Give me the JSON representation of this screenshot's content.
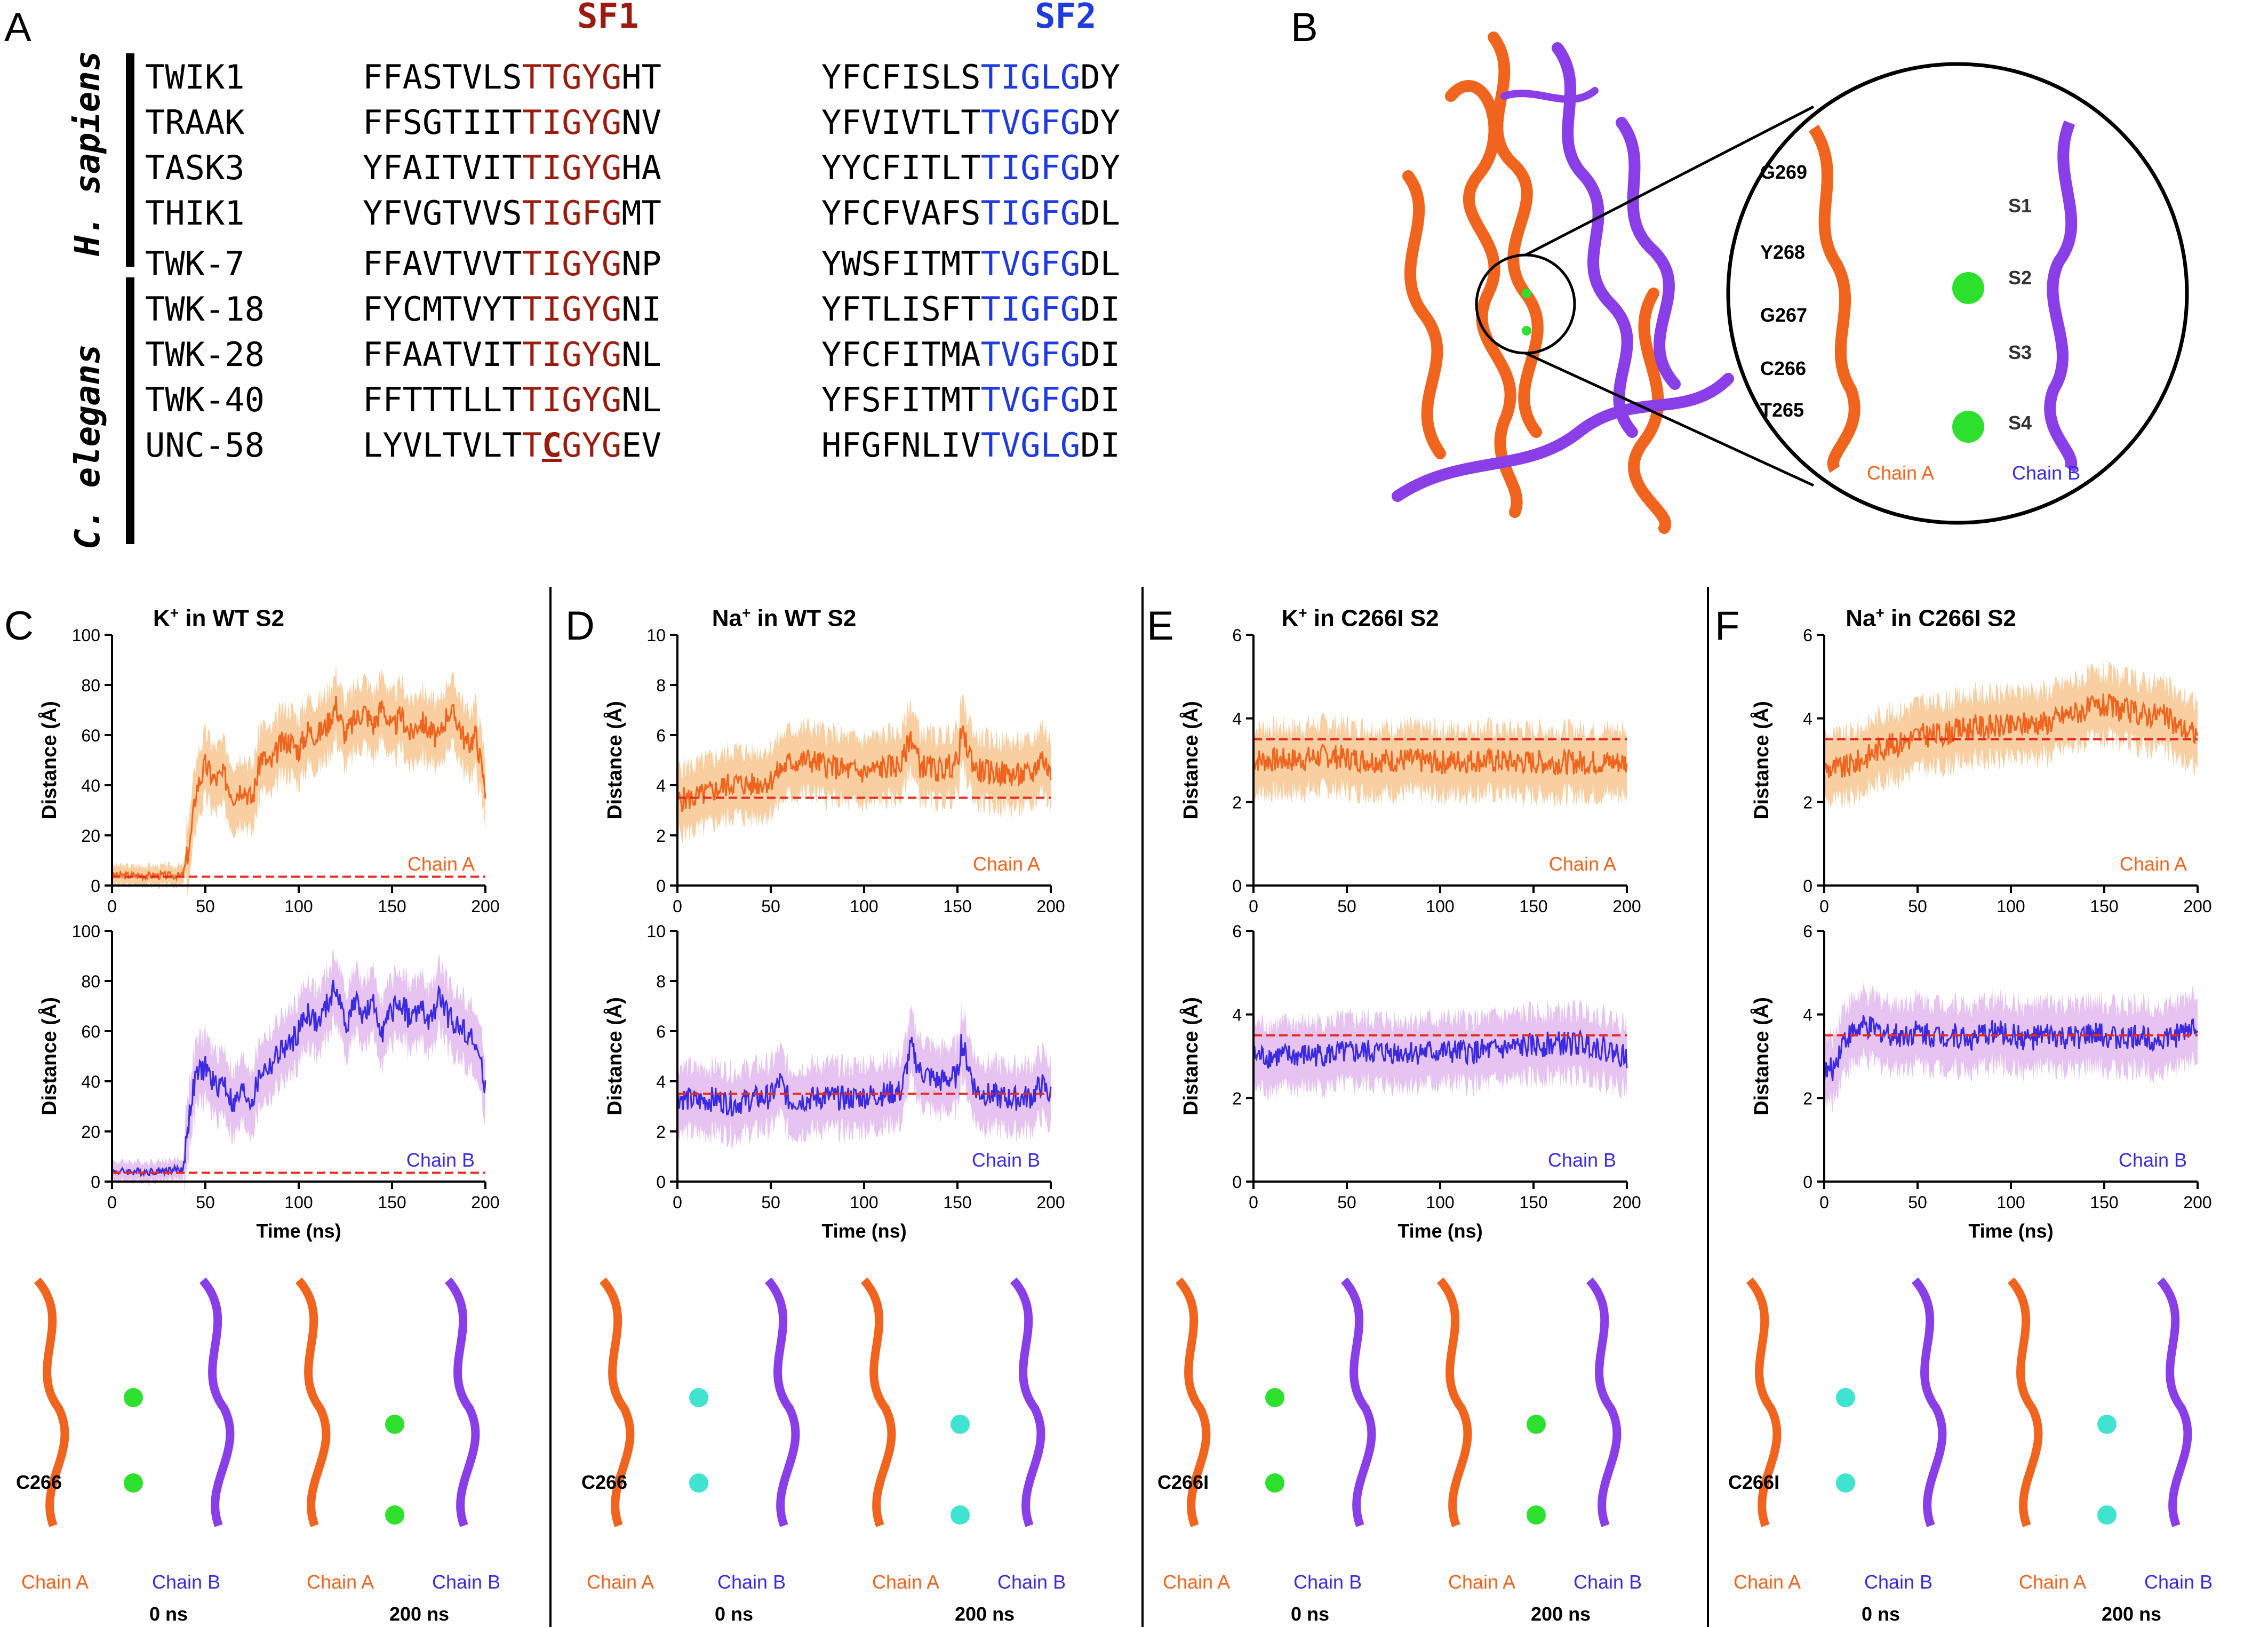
{
  "panels": {
    "A": "A",
    "B": "B",
    "C": "C",
    "D": "D",
    "E": "E",
    "F": "F"
  },
  "alignment": {
    "sf1_header": "SF1",
    "sf2_header": "SF2",
    "species_human": "H. sapiens",
    "species_worm": "C. elegans",
    "rows": [
      {
        "name": "TWIK1",
        "sf1_pre": "FFASTVLS",
        "sf1_core": "TTGYG",
        "sf1_post": "HT",
        "sf2_pre": "YFCFISLS",
        "sf2_core": "TIGLG",
        "sf2_post": "DY"
      },
      {
        "name": "TRAAK",
        "sf1_pre": "FFSGTIIT",
        "sf1_core": "TIGYG",
        "sf1_post": "NV",
        "sf2_pre": "YFVIVTLT",
        "sf2_core": "TVGFG",
        "sf2_post": "DY"
      },
      {
        "name": "TASK3",
        "sf1_pre": "YFAITVIT",
        "sf1_core": "TIGYG",
        "sf1_post": "HA",
        "sf2_pre": "YYCFITLT",
        "sf2_core": "TIGFG",
        "sf2_post": "DY"
      },
      {
        "name": "THIK1",
        "sf1_pre": "YFVGTVVS",
        "sf1_core": "TIGFG",
        "sf1_post": "MT",
        "sf2_pre": "YFCFVAFS",
        "sf2_core": "TIGFG",
        "sf2_post": "DL"
      },
      {
        "name": "TWK-7",
        "sf1_pre": "FFAVTVVT",
        "sf1_core": "TIGYG",
        "sf1_post": "NP",
        "sf2_pre": "YWSFITMT",
        "sf2_core": "TVGFG",
        "sf2_post": "DL"
      },
      {
        "name": "TWK-18",
        "sf1_pre": "FYCMTVYT",
        "sf1_core": "TIGYG",
        "sf1_post": "NI",
        "sf2_pre": "YFTLISFT",
        "sf2_core": "TIGFG",
        "sf2_post": "DI"
      },
      {
        "name": "TWK-28",
        "sf1_pre": "FFAATVIT",
        "sf1_core": "TIGYG",
        "sf1_post": "NL",
        "sf2_pre": "YFCFITMA",
        "sf2_core": "TVGFG",
        "sf2_post": "DI"
      },
      {
        "name": "TWK-40",
        "sf1_pre": "FFTTTLLT",
        "sf1_core": "TIGYG",
        "sf1_post": "NL",
        "sf2_pre": "YFSFITMT",
        "sf2_core": "TVGFG",
        "sf2_post": "DI"
      },
      {
        "name": "UNC-58",
        "sf1_pre": "LYVLTVLT",
        "sf1_core": "TCGYG",
        "sf1_post": "EV",
        "sf2_pre": "HFGFNLIV",
        "sf2_core": "TVGLG",
        "sf2_post": "DI"
      }
    ]
  },
  "structure_b": {
    "residues": [
      "G269",
      "Y268",
      "G267",
      "C266",
      "T265"
    ],
    "sites": [
      "S1",
      "S2",
      "S3",
      "S4"
    ],
    "chain_a": "Chain A",
    "chain_b": "Chain B"
  },
  "colors": {
    "orange": "#f0641e",
    "orange_band": "#f8c58f",
    "blue": "#3a2be0",
    "blue_band": "#e3b8ef",
    "ref_line": "#e8291c",
    "chainA_text": "#f0641e",
    "chainB_text": "#3a2be0",
    "sf1": "#9b1c0f",
    "sf2": "#1f3be0"
  },
  "time_axis_label": "Time (ns)",
  "distance_axis_label": "Distance (Å)",
  "chart_data": [
    {
      "panel": "C",
      "title": "K+ in WT S2",
      "type": "line",
      "chain": "Chain A",
      "ylim": [
        0,
        100
      ],
      "yticks": [
        0,
        20,
        40,
        60,
        80,
        100
      ],
      "xlim": [
        0,
        200
      ],
      "xticks": [
        0,
        50,
        100,
        150,
        200
      ],
      "reference": 3.5,
      "x": [
        0,
        20,
        38,
        42,
        45,
        50,
        55,
        60,
        65,
        70,
        75,
        80,
        85,
        90,
        95,
        100,
        105,
        110,
        115,
        120,
        125,
        130,
        135,
        140,
        145,
        150,
        155,
        160,
        165,
        170,
        175,
        180,
        185,
        190,
        195,
        200
      ],
      "y": [
        4,
        4,
        4,
        18,
        38,
        48,
        42,
        44,
        36,
        40,
        34,
        52,
        48,
        56,
        58,
        54,
        62,
        60,
        64,
        72,
        60,
        66,
        70,
        64,
        72,
        62,
        68,
        60,
        66,
        62,
        58,
        70,
        66,
        56,
        60,
        38
      ]
    },
    {
      "panel": "C",
      "type": "line",
      "chain": "Chain B",
      "ylim": [
        0,
        100
      ],
      "yticks": [
        0,
        20,
        40,
        60,
        80,
        100
      ],
      "xlim": [
        0,
        200
      ],
      "xticks": [
        0,
        50,
        100,
        150,
        200
      ],
      "reference": 3.5,
      "x": [
        0,
        20,
        38,
        42,
        45,
        50,
        55,
        60,
        65,
        70,
        75,
        80,
        85,
        90,
        95,
        100,
        105,
        110,
        115,
        120,
        125,
        130,
        135,
        140,
        145,
        150,
        155,
        160,
        165,
        170,
        175,
        180,
        185,
        190,
        195,
        200
      ],
      "y": [
        4,
        4,
        5,
        30,
        42,
        46,
        38,
        40,
        30,
        36,
        32,
        44,
        46,
        52,
        54,
        60,
        68,
        62,
        70,
        78,
        62,
        72,
        66,
        70,
        60,
        68,
        72,
        64,
        70,
        62,
        74,
        66,
        62,
        60,
        54,
        38
      ]
    },
    {
      "panel": "D",
      "title": "Na+ in WT S2",
      "type": "line",
      "chain": "Chain A",
      "ylim": [
        0,
        10
      ],
      "yticks": [
        0,
        2,
        4,
        6,
        8,
        10
      ],
      "xlim": [
        0,
        200
      ],
      "xticks": [
        0,
        50,
        100,
        150,
        200
      ],
      "reference": 3.5,
      "x": [
        0,
        10,
        20,
        30,
        40,
        50,
        55,
        60,
        70,
        80,
        90,
        100,
        110,
        120,
        125,
        130,
        140,
        150,
        152,
        160,
        170,
        180,
        190,
        195,
        200
      ],
      "y": [
        3.4,
        3.5,
        3.8,
        4.1,
        4.0,
        4.2,
        4.6,
        4.9,
        5.0,
        4.8,
        4.6,
        4.5,
        4.7,
        4.8,
        6.0,
        4.8,
        4.6,
        4.9,
        6.1,
        4.6,
        4.5,
        4.4,
        4.4,
        5.2,
        4.4
      ]
    },
    {
      "panel": "D",
      "type": "line",
      "chain": "Chain B",
      "ylim": [
        0,
        10
      ],
      "yticks": [
        0,
        2,
        4,
        6,
        8,
        10
      ],
      "xlim": [
        0,
        200
      ],
      "xticks": [
        0,
        50,
        100,
        150,
        200
      ],
      "reference": 3.5,
      "x": [
        0,
        10,
        20,
        30,
        40,
        50,
        55,
        60,
        70,
        80,
        90,
        100,
        110,
        120,
        125,
        130,
        140,
        150,
        152,
        160,
        170,
        180,
        190,
        195,
        200
      ],
      "y": [
        3.4,
        3.2,
        3.3,
        3.1,
        3.3,
        3.4,
        4.0,
        3.2,
        3.3,
        3.4,
        3.3,
        3.4,
        3.5,
        3.6,
        5.4,
        4.4,
        4.0,
        4.2,
        5.6,
        3.6,
        3.4,
        3.3,
        3.4,
        3.9,
        3.4
      ]
    },
    {
      "panel": "E",
      "title": "K+ in C266I S2",
      "type": "line",
      "chain": "Chain A",
      "ylim": [
        0,
        6
      ],
      "yticks": [
        0,
        2,
        4,
        6
      ],
      "xlim": [
        0,
        200
      ],
      "xticks": [
        0,
        50,
        100,
        150,
        200
      ],
      "reference": 3.5,
      "x": [
        0,
        20,
        40,
        60,
        80,
        100,
        120,
        140,
        160,
        180,
        200
      ],
      "y": [
        3.0,
        3.0,
        3.1,
        3.0,
        3.0,
        2.95,
        3.0,
        2.95,
        2.95,
        2.95,
        2.95
      ]
    },
    {
      "panel": "E",
      "type": "line",
      "chain": "Chain B",
      "ylim": [
        0,
        6
      ],
      "yticks": [
        0,
        2,
        4,
        6
      ],
      "xlim": [
        0,
        200
      ],
      "xticks": [
        0,
        50,
        100,
        150,
        200
      ],
      "reference": 3.5,
      "x": [
        0,
        20,
        40,
        60,
        80,
        100,
        120,
        140,
        160,
        180,
        200
      ],
      "y": [
        3.0,
        3.0,
        3.05,
        3.1,
        3.1,
        3.1,
        3.1,
        3.2,
        3.3,
        3.3,
        3.0
      ]
    },
    {
      "panel": "F",
      "title": "Na+ in C266I S2",
      "type": "line",
      "chain": "Chain A",
      "ylim": [
        0,
        6
      ],
      "yticks": [
        0,
        2,
        4,
        6
      ],
      "xlim": [
        0,
        200
      ],
      "xticks": [
        0,
        50,
        100,
        150,
        200
      ],
      "reference": 3.5,
      "x": [
        0,
        10,
        20,
        30,
        40,
        50,
        60,
        70,
        80,
        90,
        100,
        110,
        120,
        130,
        140,
        150,
        160,
        170,
        180,
        190,
        200
      ],
      "y": [
        2.8,
        2.8,
        3.0,
        3.3,
        3.4,
        3.6,
        3.6,
        3.7,
        3.8,
        3.8,
        3.8,
        3.9,
        3.9,
        4.1,
        4.2,
        4.3,
        4.2,
        4.1,
        4.1,
        3.8,
        3.6
      ]
    },
    {
      "panel": "F",
      "type": "line",
      "chain": "Chain B",
      "ylim": [
        0,
        6
      ],
      "yticks": [
        0,
        2,
        4,
        6
      ],
      "xlim": [
        0,
        200
      ],
      "xticks": [
        0,
        50,
        100,
        150,
        200
      ],
      "reference": 3.5,
      "x": [
        0,
        5,
        10,
        20,
        30,
        40,
        50,
        60,
        70,
        80,
        90,
        100,
        110,
        120,
        130,
        140,
        150,
        160,
        170,
        180,
        190,
        200
      ],
      "y": [
        2.6,
        2.7,
        3.4,
        3.7,
        3.6,
        3.5,
        3.6,
        3.5,
        3.5,
        3.4,
        3.6,
        3.5,
        3.4,
        3.5,
        3.4,
        3.5,
        3.5,
        3.4,
        3.5,
        3.4,
        3.5,
        3.8
      ]
    }
  ],
  "snapshots": [
    {
      "panel": "C",
      "residue": "C266",
      "chain_a": "Chain A",
      "chain_b": "Chain B",
      "t0": "0 ns",
      "t1": "200 ns"
    },
    {
      "panel": "D",
      "residue": "C266",
      "chain_a": "Chain A",
      "chain_b": "Chain B",
      "t0": "0 ns",
      "t1": "200 ns"
    },
    {
      "panel": "E",
      "residue": "C266I",
      "chain_a": "Chain A",
      "chain_b": "Chain B",
      "t0": "0 ns",
      "t1": "200 ns"
    },
    {
      "panel": "F",
      "residue": "C266I",
      "chain_a": "Chain A",
      "chain_b": "Chain B",
      "t0": "0 ns",
      "t1": "200 ns"
    }
  ]
}
